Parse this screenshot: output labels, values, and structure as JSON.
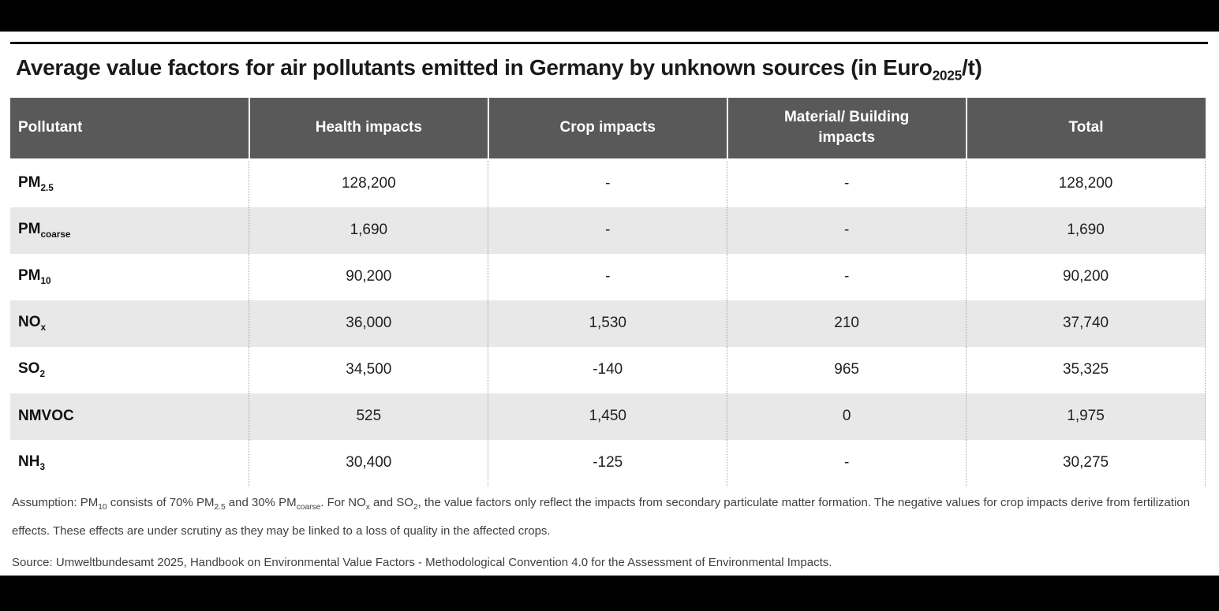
{
  "title": "Average value factors for air pollutants emitted in Germany by unknown sources (in Euro~2025~/t)",
  "colors": {
    "header_bg": "#595959",
    "header_text": "#ffffff",
    "alt_row_bg": "#e8e8e8",
    "body_text": "#1a1a1a",
    "note_text": "#404040",
    "letterbox_bar": "#000000"
  },
  "table": {
    "headers": [
      "Pollutant",
      "Health impacts",
      "Crop impacts",
      "Material/ Building impacts",
      "Total"
    ],
    "rows": [
      {
        "pollutant": "PM~2.5~",
        "health": "128,200",
        "crop": "-",
        "material": "-",
        "total": "128,200"
      },
      {
        "pollutant": "PM~coarse~",
        "health": "1,690",
        "crop": "-",
        "material": "-",
        "total": "1,690"
      },
      {
        "pollutant": "PM~10~",
        "health": "90,200",
        "crop": "-",
        "material": "-",
        "total": "90,200"
      },
      {
        "pollutant": "NO~x~",
        "health": "36,000",
        "crop": "1,530",
        "material": "210",
        "total": "37,740"
      },
      {
        "pollutant": "SO~2~",
        "health": "34,500",
        "crop": "-140",
        "material": "965",
        "total": "35,325"
      },
      {
        "pollutant": "NMVOC",
        "health": "525",
        "crop": "1,450",
        "material": "0",
        "total": "1,975"
      },
      {
        "pollutant": "NH~3~",
        "health": "30,400",
        "crop": "-125",
        "material": "-",
        "total": "30,275"
      }
    ]
  },
  "notes": {
    "assumption": "Assumption: PM~10~ consists of 70% PM~2.5~ and 30% PM~coarse~. For NO~x~ and SO~2~, the value factors only reflect the impacts from secondary particulate matter formation. The negative values for crop impacts derive from fertilization effects. These effects are under scrutiny as they may be linked to a loss of quality in the affected crops.",
    "source": "Source: Umweltbundesamt 2025, Handbook on Environmental Value Factors - Methodological Convention 4.0 for the Assessment of Environmental Impacts."
  }
}
